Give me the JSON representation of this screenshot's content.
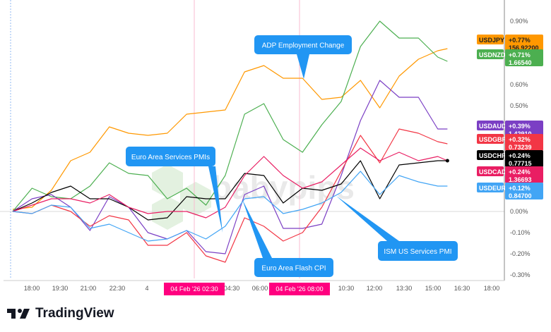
{
  "chart_data": {
    "type": "line",
    "title": "",
    "xlabel": "",
    "ylabel": "",
    "ylim": [
      -0.32,
      0.97
    ],
    "y_unit": "%",
    "grid": false,
    "x": [
      "17:00",
      "18:00",
      "19:00",
      "20:00",
      "21:00",
      "22:00",
      "23:00",
      "00:00",
      "01:00",
      "02:00",
      "03:00",
      "04:00",
      "05:00",
      "06:00",
      "07:00",
      "08:00",
      "09:00",
      "10:00",
      "11:00",
      "12:00",
      "13:00",
      "14:00",
      "15:00",
      "15:30"
    ],
    "x_tick_labels": [
      "18:00",
      "19:30",
      "21:00",
      "22:30",
      "4",
      "04:30",
      "06:00",
      "10:30",
      "12:00",
      "13:30",
      "15:00",
      "16:30",
      "18:00"
    ],
    "x_highlight_labels": [
      "04 Feb '26   02:30",
      "04 Feb '26   08:00"
    ],
    "y_tick_labels": [
      "0.90%",
      "0.60%",
      "0.50%",
      "0.00%",
      "-0.10%",
      "-0.20%",
      "-0.30%"
    ],
    "y_tick_values": [
      0.9,
      0.6,
      0.5,
      0.0,
      -0.1,
      -0.2,
      -0.3
    ],
    "series": [
      {
        "name": "USDJPY",
        "color": "#ff9800",
        "change": "+0.77%",
        "price": "156.92200",
        "values": [
          0.01,
          0.02,
          0.1,
          0.24,
          0.28,
          0.4,
          0.37,
          0.36,
          0.37,
          0.46,
          0.47,
          0.48,
          0.66,
          0.69,
          0.63,
          0.63,
          0.53,
          0.54,
          0.62,
          0.49,
          0.64,
          0.72,
          0.76,
          0.77
        ]
      },
      {
        "name": "USDNZD",
        "color": "#4caf50",
        "change": "+0.71%",
        "price": "1.66540",
        "values": [
          0.0,
          0.11,
          0.07,
          0.06,
          0.12,
          0.23,
          0.18,
          0.17,
          0.06,
          0.11,
          0.03,
          0.17,
          0.46,
          0.51,
          0.34,
          0.28,
          0.41,
          0.52,
          0.78,
          0.9,
          0.82,
          0.82,
          0.73,
          0.71
        ]
      },
      {
        "name": "USDAUD",
        "color": "#7b3fc4",
        "change": "+0.39%",
        "price": "1.42910",
        "values": [
          0.0,
          0.06,
          0.08,
          0.02,
          -0.09,
          0.07,
          0.02,
          -0.1,
          -0.13,
          -0.09,
          -0.19,
          -0.2,
          0.08,
          0.12,
          -0.08,
          -0.08,
          -0.06,
          0.17,
          0.43,
          0.62,
          0.54,
          0.54,
          0.39,
          0.39
        ]
      },
      {
        "name": "USDGBP",
        "color": "#f23645",
        "change": "+0.32%",
        "price": "0.73239",
        "values": [
          0.0,
          -0.01,
          0.03,
          0.0,
          -0.07,
          -0.02,
          -0.04,
          -0.16,
          -0.16,
          -0.1,
          -0.21,
          -0.24,
          -0.03,
          -0.07,
          -0.14,
          -0.1,
          0.02,
          0.19,
          0.36,
          0.23,
          0.39,
          0.37,
          0.33,
          0.32
        ]
      },
      {
        "name": "USDCHF",
        "color": "#000000",
        "change": "+0.24%",
        "price": "0.77715",
        "values": [
          0.0,
          0.04,
          0.09,
          0.12,
          0.06,
          0.06,
          0.02,
          -0.04,
          -0.03,
          0.07,
          0.06,
          0.06,
          0.18,
          0.17,
          0.04,
          0.11,
          0.1,
          0.13,
          0.24,
          0.06,
          0.22,
          0.23,
          0.24,
          0.24
        ]
      },
      {
        "name": "USDCAD",
        "color": "#e91e63",
        "change": "+0.24%",
        "price": "1.36693",
        "values": [
          0.0,
          0.03,
          0.06,
          0.06,
          0.04,
          0.08,
          0.02,
          -0.01,
          0.0,
          0.0,
          -0.03,
          0.02,
          0.17,
          0.26,
          0.17,
          0.11,
          0.14,
          0.22,
          0.3,
          0.24,
          0.28,
          0.24,
          0.26,
          0.24
        ]
      },
      {
        "name": "USDEUR",
        "color": "#42a5f5",
        "change": "+0.12%",
        "price": "0.84700",
        "values": [
          0.0,
          -0.01,
          0.03,
          0.02,
          -0.08,
          -0.06,
          -0.1,
          -0.14,
          -0.13,
          -0.09,
          -0.13,
          -0.07,
          0.06,
          0.07,
          -0.01,
          0.01,
          0.04,
          0.09,
          0.19,
          0.08,
          0.17,
          0.14,
          0.12,
          0.12
        ]
      }
    ],
    "annotations": [
      {
        "text": "ADP Employment Change",
        "at": "08:00"
      },
      {
        "text": "Euro Area Services PMIs",
        "at": "03:30"
      },
      {
        "text": "Euro Area Flash CPI",
        "at": "04:30"
      },
      {
        "text": "ISM US Services PMI",
        "at": "09:30"
      }
    ]
  },
  "watermark": "babypips",
  "brand": {
    "name": "TradingView",
    "color": "#131722"
  },
  "colors": {
    "event_line": "#f8bbd0",
    "highlight_label": "#ff007f",
    "callout": "#2196f3"
  }
}
